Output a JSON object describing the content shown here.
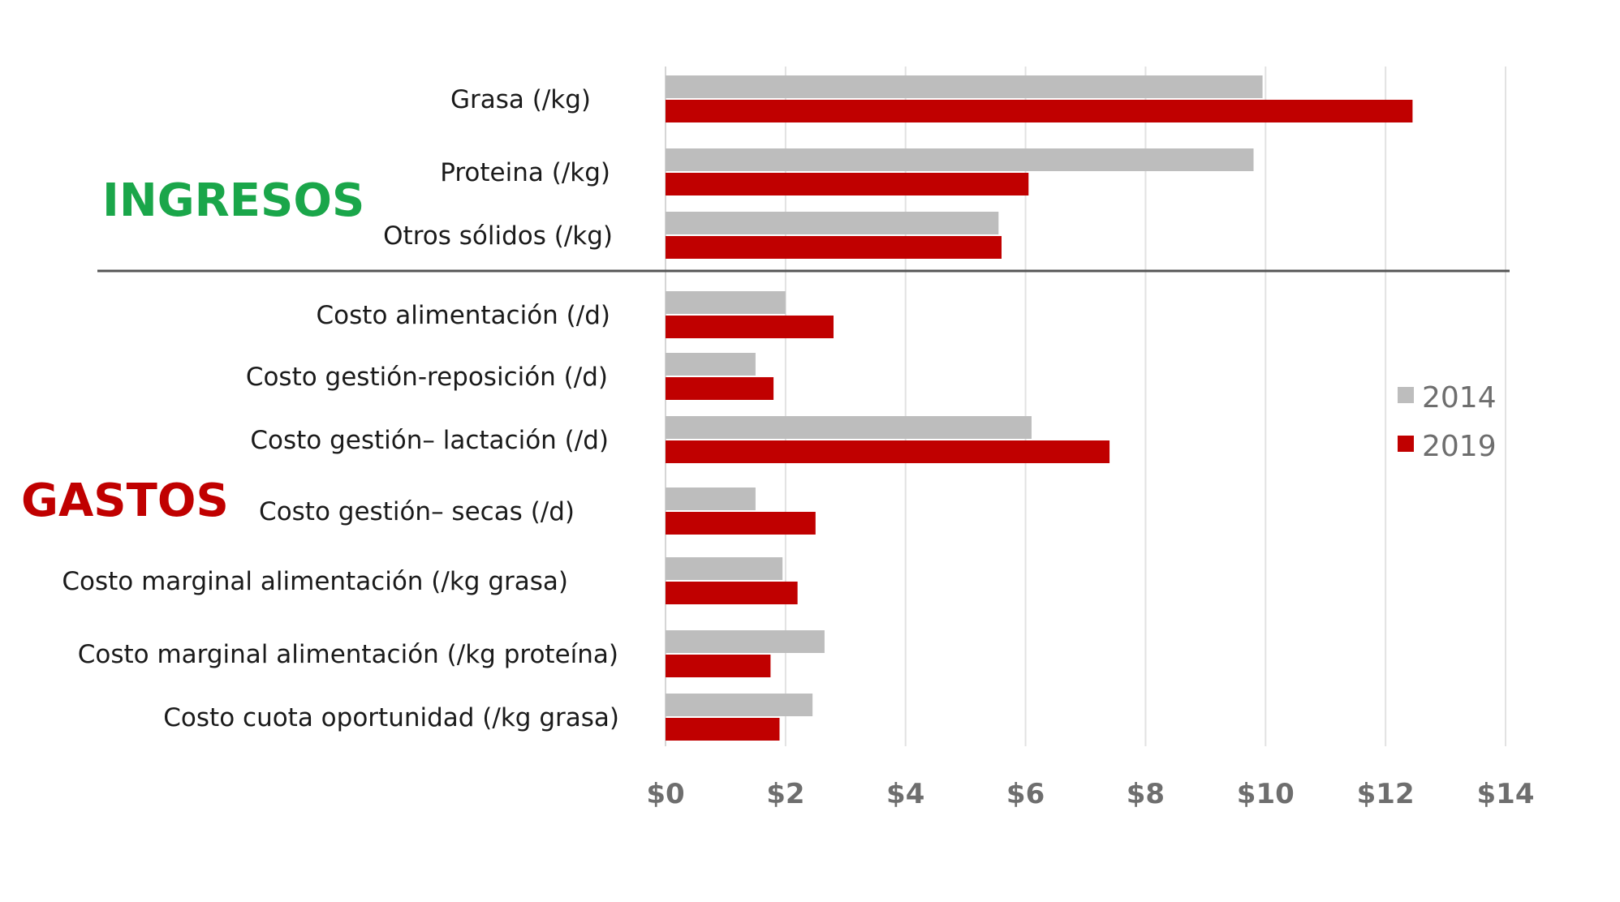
{
  "chart_data": {
    "type": "bar",
    "orientation": "horizontal",
    "categories": [
      "Grasa (/kg)",
      "Proteina (/kg)",
      "Otros sólidos (/kg)",
      "Costo alimentación (/d)",
      "Costo gestión-reposición (/d)",
      "Costo gestión– lactación (/d)",
      "Costo gestión– secas (/d)",
      "Costo marginal alimentación (/kg grasa)",
      "Costo marginal alimentación (/kg proteína)",
      "Costo cuota oportunidad (/kg grasa)"
    ],
    "series": [
      {
        "name": "2014",
        "color": "#bdbdbd",
        "values": [
          9.95,
          9.8,
          5.55,
          2.0,
          1.5,
          6.1,
          1.5,
          1.95,
          2.65,
          2.45
        ]
      },
      {
        "name": "2019",
        "color": "#c00000",
        "values": [
          12.45,
          6.05,
          5.6,
          2.8,
          1.8,
          7.4,
          2.5,
          2.2,
          1.75,
          1.9
        ]
      }
    ],
    "xlim": [
      0,
      14
    ],
    "x_ticks": [
      0,
      2,
      4,
      6,
      8,
      10,
      12,
      14
    ],
    "x_tick_labels": [
      "$0",
      "$2",
      "$4",
      "$6",
      "$8",
      "$10",
      "$12",
      "$14"
    ],
    "grid": true,
    "legend": "right",
    "sections": [
      {
        "label": "INGRESOS",
        "color": "#1aa64a",
        "categories": [
          0,
          1,
          2
        ]
      },
      {
        "label": "GASTOS",
        "color": "#c00000",
        "categories": [
          3,
          4,
          5,
          6,
          7,
          8,
          9
        ]
      }
    ]
  }
}
